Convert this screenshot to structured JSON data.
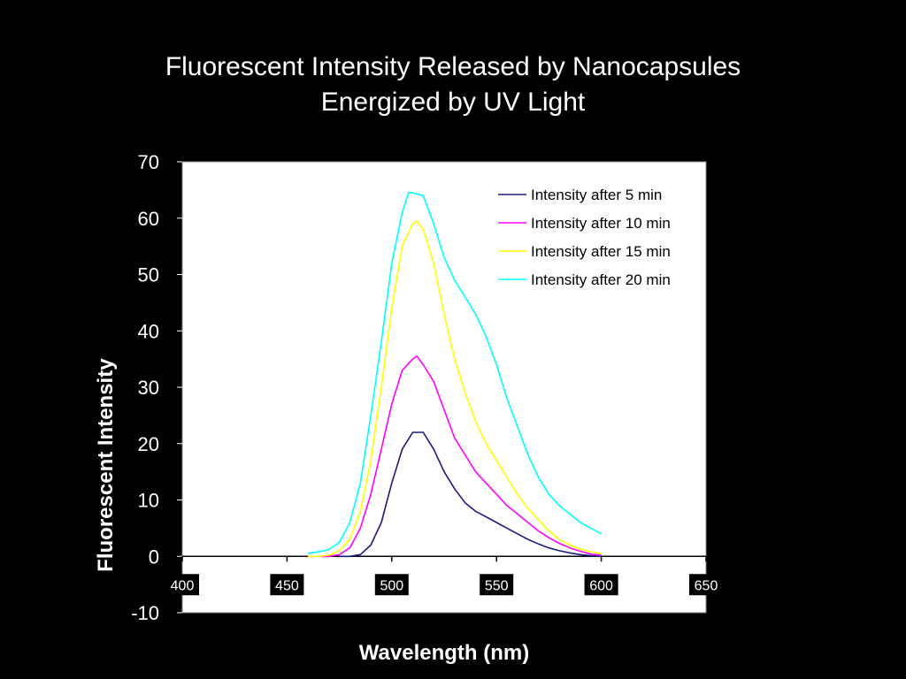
{
  "chart_data": {
    "type": "line",
    "title_lines": [
      "Fluorescent Intensity Released by Nanocapsules",
      "Energized by UV Light"
    ],
    "xlabel": "Wavelength (nm)",
    "ylabel": "Fluorescent Intensity",
    "xlim": [
      400,
      650
    ],
    "ylim": [
      -10,
      70
    ],
    "xticks": [
      400,
      450,
      500,
      550,
      600,
      650
    ],
    "yticks": [
      -10,
      0,
      10,
      20,
      30,
      40,
      50,
      60,
      70
    ],
    "grid": false,
    "legend_position": "top-right",
    "series": [
      {
        "name": "Intensity after 5 min",
        "color": "#1a1a80",
        "x": [
          475,
          480,
          485,
          490,
          495,
          500,
          505,
          510,
          515,
          520,
          525,
          530,
          535,
          540,
          545,
          550,
          555,
          560,
          565,
          570,
          575,
          580,
          585,
          590,
          595,
          600
        ],
        "y": [
          0,
          0,
          0.3,
          2,
          6,
          13,
          19,
          22,
          22,
          19,
          15,
          12,
          9.5,
          8,
          7,
          6,
          5,
          4,
          3,
          2.2,
          1.5,
          1,
          0.6,
          0.3,
          0.1,
          0
        ]
      },
      {
        "name": "Intensity after 10 min",
        "color": "#ff00ff",
        "x": [
          465,
          470,
          475,
          480,
          485,
          490,
          495,
          500,
          505,
          510,
          512,
          515,
          520,
          525,
          530,
          535,
          540,
          545,
          550,
          555,
          560,
          565,
          570,
          575,
          580,
          585,
          590,
          595,
          600
        ],
        "y": [
          0,
          0,
          0.3,
          1.5,
          5,
          11,
          19,
          27,
          33,
          35,
          35.5,
          34,
          31,
          26,
          21,
          18,
          15,
          13,
          11,
          9,
          7.5,
          6,
          4.5,
          3.3,
          2.3,
          1.5,
          0.9,
          0.4,
          0.2
        ]
      },
      {
        "name": "Intensity after 15 min",
        "color": "#ffff00",
        "x": [
          460,
          465,
          470,
          475,
          480,
          485,
          490,
          495,
          500,
          505,
          510,
          512,
          515,
          520,
          525,
          530,
          535,
          540,
          545,
          550,
          555,
          560,
          565,
          570,
          575,
          580,
          585,
          590,
          595,
          600
        ],
        "y": [
          0,
          0,
          0.2,
          1,
          3,
          8,
          17,
          30,
          44,
          55,
          59,
          59.5,
          58,
          52,
          43,
          35,
          29,
          24,
          20,
          17,
          14,
          11,
          8.5,
          6.5,
          4.5,
          3,
          2,
          1.3,
          0.8,
          0.5
        ]
      },
      {
        "name": "Intensity after 20 min",
        "color": "#00ffff",
        "x": [
          460,
          465,
          470,
          475,
          480,
          485,
          490,
          495,
          500,
          505,
          508,
          510,
          515,
          520,
          525,
          530,
          535,
          540,
          545,
          550,
          555,
          560,
          565,
          570,
          575,
          580,
          585,
          590,
          595,
          600
        ],
        "y": [
          0.5,
          0.8,
          1.2,
          2.5,
          6,
          13,
          25,
          38,
          52,
          61,
          64.5,
          64.5,
          64,
          59,
          53,
          49,
          46,
          43,
          39,
          34,
          28,
          23,
          18,
          14,
          11,
          9,
          7.5,
          6,
          5,
          4
        ]
      }
    ]
  }
}
